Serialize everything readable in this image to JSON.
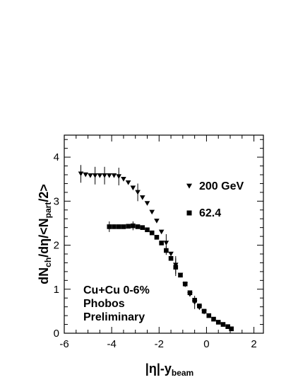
{
  "chart_data": {
    "type": "scatter",
    "xlabel": {
      "main": "|η|-y",
      "sub": "beam"
    },
    "ylabel": {
      "p1": "dN",
      "s1": "ch",
      "p2": "/dη/<N",
      "s2": "part",
      "p3": "/2>"
    },
    "xlim": [
      -6,
      2.4
    ],
    "ylim": [
      0,
      4.5
    ],
    "xticks": [
      -6,
      -4,
      -2,
      0,
      2
    ],
    "xtick_labels": [
      "-6",
      "-4",
      "-2",
      "0",
      "2"
    ],
    "yticks": [
      0,
      1,
      2,
      3,
      4
    ],
    "ytick_labels": [
      "0",
      "1",
      "2",
      "3",
      "4"
    ],
    "legend_position": "right",
    "annotation": [
      "Cu+Cu  0-6%",
      "Phobos",
      "Preliminary"
    ],
    "series": [
      {
        "name": "200 GeV",
        "marker": "triangle-down",
        "points": [
          {
            "x": -5.3,
            "y": 3.62,
            "err": 0.2
          },
          {
            "x": -5.1,
            "y": 3.6
          },
          {
            "x": -4.9,
            "y": 3.58
          },
          {
            "x": -4.7,
            "y": 3.58,
            "err": 0.2
          },
          {
            "x": -4.5,
            "y": 3.58
          },
          {
            "x": -4.3,
            "y": 3.58,
            "err": 0.2
          },
          {
            "x": -4.1,
            "y": 3.58
          },
          {
            "x": -3.9,
            "y": 3.58
          },
          {
            "x": -3.7,
            "y": 3.56,
            "err": 0.2
          },
          {
            "x": -3.5,
            "y": 3.5
          },
          {
            "x": -3.3,
            "y": 3.42
          },
          {
            "x": -3.1,
            "y": 3.3
          },
          {
            "x": -2.9,
            "y": 3.2,
            "err": 0.2
          },
          {
            "x": -2.7,
            "y": 3.08
          },
          {
            "x": -2.5,
            "y": 2.95
          },
          {
            "x": -2.3,
            "y": 2.75
          },
          {
            "x": -2.1,
            "y": 2.55
          },
          {
            "x": -1.9,
            "y": 2.3
          },
          {
            "x": -1.7,
            "y": 2.05,
            "err": 0.2
          },
          {
            "x": -1.5,
            "y": 1.8
          },
          {
            "x": -1.3,
            "y": 1.55,
            "err": 0.2
          },
          {
            "x": -1.1,
            "y": 1.32
          },
          {
            "x": -0.9,
            "y": 1.1
          },
          {
            "x": -0.7,
            "y": 0.88
          },
          {
            "x": -0.5,
            "y": 0.7,
            "err": 0.15
          },
          {
            "x": -0.3,
            "y": 0.58
          },
          {
            "x": -0.1,
            "y": 0.48
          }
        ]
      },
      {
        "name": "62.4",
        "marker": "square",
        "points": [
          {
            "x": -4.1,
            "y": 2.42,
            "err": 0.12
          },
          {
            "x": -3.9,
            "y": 2.42
          },
          {
            "x": -3.7,
            "y": 2.42
          },
          {
            "x": -3.5,
            "y": 2.42
          },
          {
            "x": -3.3,
            "y": 2.43
          },
          {
            "x": -3.1,
            "y": 2.44,
            "err": 0.1
          },
          {
            "x": -2.9,
            "y": 2.42
          },
          {
            "x": -2.7,
            "y": 2.4
          },
          {
            "x": -2.5,
            "y": 2.35
          },
          {
            "x": -2.3,
            "y": 2.28
          },
          {
            "x": -2.1,
            "y": 2.18
          },
          {
            "x": -1.9,
            "y": 2.05
          },
          {
            "x": -1.7,
            "y": 1.88,
            "err": 0.1
          },
          {
            "x": -1.5,
            "y": 1.7
          },
          {
            "x": -1.3,
            "y": 1.5,
            "err": 0.2
          },
          {
            "x": -1.1,
            "y": 1.32
          },
          {
            "x": -0.9,
            "y": 1.12
          },
          {
            "x": -0.7,
            "y": 0.92
          },
          {
            "x": -0.5,
            "y": 0.75
          },
          {
            "x": -0.3,
            "y": 0.62
          },
          {
            "x": -0.1,
            "y": 0.5
          },
          {
            "x": 0.1,
            "y": 0.4
          },
          {
            "x": 0.3,
            "y": 0.32
          },
          {
            "x": 0.5,
            "y": 0.25
          },
          {
            "x": 0.7,
            "y": 0.2
          },
          {
            "x": 0.9,
            "y": 0.15
          },
          {
            "x": 1.05,
            "y": 0.1
          }
        ]
      }
    ]
  }
}
